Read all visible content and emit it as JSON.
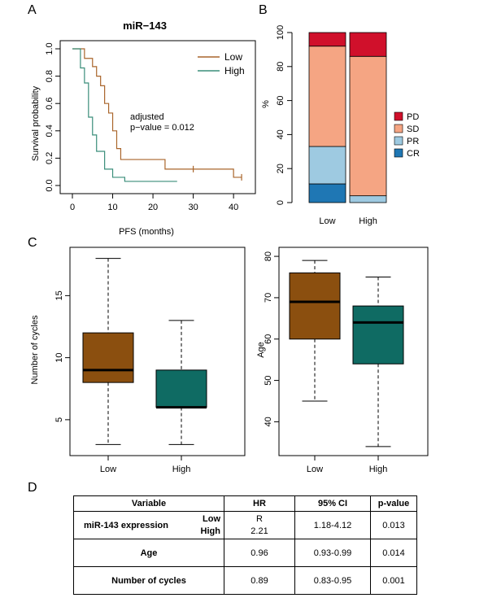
{
  "panels": {
    "a": "A",
    "b": "B",
    "c": "C",
    "d": "D"
  },
  "panel_a": {
    "title": "miR−143",
    "annotation_line1": "adjusted",
    "annotation_line2": "p−value =  0.012"
  },
  "chart_data": [
    {
      "type": "line",
      "title": "miR−143",
      "xlabel": "PFS (months)",
      "ylabel": "Survival probability",
      "xlim": [
        0,
        43
      ],
      "ylim": [
        0,
        1
      ],
      "xticks": [
        0,
        10,
        20,
        30,
        40
      ],
      "yticks": [
        0.0,
        0.2,
        0.4,
        0.6,
        0.8,
        1.0
      ],
      "legend_position": "top-right",
      "series": [
        {
          "name": "Low",
          "color": "#a9652b",
          "step": true,
          "x": [
            0,
            3,
            5,
            6,
            7,
            8,
            9,
            10,
            11,
            12,
            23,
            40,
            42
          ],
          "y": [
            1.0,
            0.93,
            0.87,
            0.8,
            0.73,
            0.6,
            0.53,
            0.4,
            0.27,
            0.19,
            0.12,
            0.06,
            0.06
          ],
          "censored": [
            [
              30,
              0.12
            ],
            [
              42,
              0.06
            ]
          ]
        },
        {
          "name": "High",
          "color": "#3a8e7a",
          "step": true,
          "x": [
            0,
            2,
            3,
            4,
            5,
            6,
            8,
            10,
            13,
            26
          ],
          "y": [
            1.0,
            0.86,
            0.75,
            0.5,
            0.37,
            0.25,
            0.12,
            0.06,
            0.03,
            0.03
          ]
        }
      ]
    },
    {
      "type": "bar",
      "stacked": true,
      "ylabel": "%",
      "ylim": [
        0,
        100
      ],
      "yticks": [
        0,
        20,
        40,
        60,
        80,
        100
      ],
      "categories": [
        "Low",
        "High"
      ],
      "legend_position": "right",
      "series": [
        {
          "name": "CR",
          "color": "#1f77b4",
          "values": [
            11,
            0
          ]
        },
        {
          "name": "PR",
          "color": "#9ecae1",
          "values": [
            22,
            4
          ]
        },
        {
          "name": "SD",
          "color": "#f5a583",
          "values": [
            59,
            82
          ]
        },
        {
          "name": "PD",
          "color": "#d0102b",
          "values": [
            8,
            14
          ]
        }
      ],
      "legend_order": [
        "PD",
        "SD",
        "PR",
        "CR"
      ]
    },
    {
      "type": "box",
      "ylabel": "Number of cycles",
      "ylim": [
        2.5,
        18.5
      ],
      "yticks": [
        5,
        10,
        15
      ],
      "categories": [
        "Low",
        "High"
      ],
      "boxes": [
        {
          "name": "Low",
          "color": "#8b4f0f",
          "min": 3,
          "q1": 8,
          "median": 9,
          "q3": 12,
          "max": 18
        },
        {
          "name": "High",
          "color": "#0f6b63",
          "min": 3,
          "q1": 6,
          "median": 6,
          "q3": 9,
          "max": 13
        }
      ]
    },
    {
      "type": "box",
      "ylabel": "Age",
      "ylim": [
        33,
        81
      ],
      "yticks": [
        40,
        50,
        60,
        70,
        80
      ],
      "categories": [
        "Low",
        "High"
      ],
      "boxes": [
        {
          "name": "Low",
          "color": "#8b4f0f",
          "min": 45,
          "q1": 60,
          "median": 69,
          "q3": 76,
          "max": 79
        },
        {
          "name": "High",
          "color": "#0f6b63",
          "min": 34,
          "q1": 54,
          "median": 64,
          "q3": 68,
          "max": 75
        }
      ]
    }
  ],
  "table": {
    "headers": [
      "Variable",
      "HR",
      "95% CI",
      "p-value"
    ],
    "rows": [
      {
        "variable": "miR-143 expression",
        "sub_low": "Low",
        "sub_high": "High",
        "hr_line1": "R",
        "hr_line2": "2.21",
        "ci": "1.18-4.12",
        "p": "0.013"
      },
      {
        "variable": "Age",
        "hr": "0.96",
        "ci": "0.93-0.99",
        "p": "0.014"
      },
      {
        "variable": "Number of cycles",
        "hr": "0.89",
        "ci": "0.83-0.95",
        "p": "0.001"
      }
    ]
  }
}
